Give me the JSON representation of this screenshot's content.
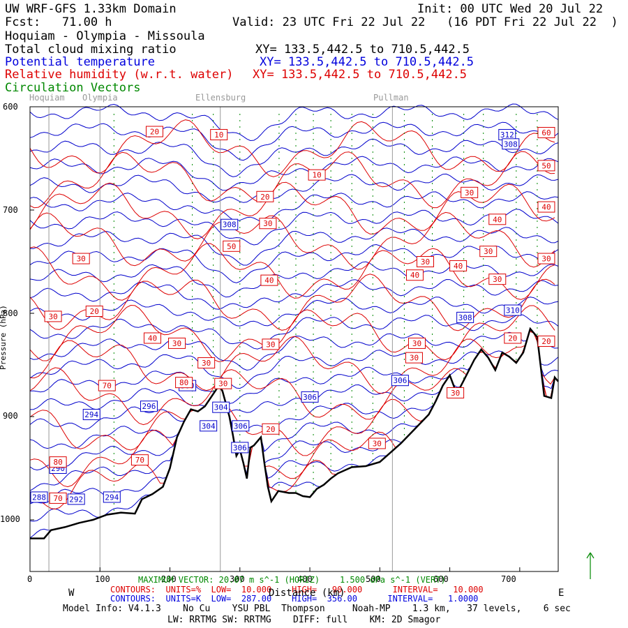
{
  "header": {
    "model": "UW WRF-GFS 1.33km Domain",
    "init": "Init: 00 UTC Wed 20 Jul 22",
    "fcst": "Fcst:   71.00 h",
    "valid": "Valid: 23 UTC Fri 22 Jul 22   (16 PDT Fri 22 Jul 22  )",
    "route": "Hoquiam - Olympia - Missoula",
    "fields": [
      {
        "label": "Total cloud mixing ratio",
        "xy": "XY= 133.5,442.5 to 710.5,442.5",
        "color": "#000000"
      },
      {
        "label": "Potential temperature",
        "xy": "XY= 133.5,442.5 to 710.5,442.5",
        "color": "#0000dd"
      },
      {
        "label": "Relative humidity (w.r.t. water)",
        "xy": "XY= 133.5,442.5 to 710.5,442.5",
        "color": "#dd0000"
      },
      {
        "label": "Circulation Vectors",
        "xy": "",
        "color": "#008800"
      }
    ]
  },
  "locations": [
    {
      "name": "Hoquiam",
      "km": 27
    },
    {
      "name": "Olympia",
      "km": 100
    },
    {
      "name": "Ellensburg",
      "km": 272
    },
    {
      "name": "Pullman",
      "km": 518
    }
  ],
  "footer": {
    "max_vector": "MAXIMUM VECTOR: 20.07 m s^-1 (HORIZ)    1.500 dPa s^-1 (VERT)",
    "rh_contours": "CONTOURS:  UNITS=%  LOW=  10.000    HIGH=   90.000      INTERVAL=   10.000",
    "theta_contours": "CONTOURS:  UNITS=K  LOW=  287.00    HIGH=  356.00      INTERVAL=   1.0000",
    "west": "W",
    "east": "E",
    "model_info": "Model Info: V4.1.3    No Cu    YSU PBL  Thompson     Noah-MP    1.3 km,   37 levels,    6 sec",
    "model_info2": "LW: RRTMG SW: RRTMG    DIFF: full    KM: 2D Smagor"
  },
  "chart_data": {
    "type": "cross-section",
    "title": "UW WRF-GFS 1.33km Domain",
    "xlabel": "Distance (km)",
    "ylabel": "Pressure (hPa)",
    "xlim": [
      0,
      755
    ],
    "ylim": [
      1050,
      600
    ],
    "xticks": [
      0,
      100,
      200,
      300,
      400,
      500,
      600,
      700
    ],
    "yticks": [
      600,
      700,
      800,
      900,
      1000
    ],
    "terrain_hpa": [
      [
        0,
        1018
      ],
      [
        20,
        1018
      ],
      [
        30,
        1010
      ],
      [
        50,
        1007
      ],
      [
        70,
        1003
      ],
      [
        90,
        1000
      ],
      [
        110,
        995
      ],
      [
        130,
        993
      ],
      [
        150,
        994
      ],
      [
        160,
        980
      ],
      [
        175,
        975
      ],
      [
        190,
        968
      ],
      [
        200,
        950
      ],
      [
        210,
        920
      ],
      [
        220,
        905
      ],
      [
        230,
        893
      ],
      [
        240,
        895
      ],
      [
        250,
        890
      ],
      [
        260,
        880
      ],
      [
        270,
        870
      ],
      [
        275,
        875
      ],
      [
        285,
        900
      ],
      [
        290,
        918
      ],
      [
        295,
        938
      ],
      [
        300,
        932
      ],
      [
        305,
        945
      ],
      [
        310,
        960
      ],
      [
        315,
        930
      ],
      [
        320,
        928
      ],
      [
        330,
        920
      ],
      [
        335,
        945
      ],
      [
        340,
        968
      ],
      [
        345,
        982
      ],
      [
        355,
        972
      ],
      [
        370,
        974
      ],
      [
        380,
        974
      ],
      [
        390,
        977
      ],
      [
        400,
        978
      ],
      [
        410,
        970
      ],
      [
        420,
        966
      ],
      [
        430,
        960
      ],
      [
        440,
        955
      ],
      [
        460,
        949
      ],
      [
        480,
        948
      ],
      [
        500,
        944
      ],
      [
        510,
        938
      ],
      [
        530,
        926
      ],
      [
        550,
        912
      ],
      [
        570,
        898
      ],
      [
        580,
        885
      ],
      [
        590,
        870
      ],
      [
        600,
        860
      ],
      [
        610,
        878
      ],
      [
        620,
        865
      ],
      [
        635,
        845
      ],
      [
        645,
        835
      ],
      [
        655,
        843
      ],
      [
        665,
        855
      ],
      [
        675,
        838
      ],
      [
        685,
        842
      ],
      [
        695,
        848
      ],
      [
        705,
        838
      ],
      [
        715,
        815
      ],
      [
        725,
        823
      ],
      [
        735,
        880
      ],
      [
        745,
        882
      ],
      [
        750,
        862
      ],
      [
        755,
        866
      ]
    ],
    "theta_labels": [
      {
        "value": 288,
        "km": 13,
        "hpa": 978
      },
      {
        "value": 290,
        "km": 40,
        "hpa": 950
      },
      {
        "value": 292,
        "km": 66,
        "hpa": 980
      },
      {
        "value": 294,
        "km": 88,
        "hpa": 898
      },
      {
        "value": 294,
        "km": 117,
        "hpa": 978
      },
      {
        "value": 296,
        "km": 170,
        "hpa": 890
      },
      {
        "value": 300,
        "km": 225,
        "hpa": 870
      },
      {
        "value": 304,
        "km": 255,
        "hpa": 909
      },
      {
        "value": 304,
        "km": 273,
        "hpa": 891
      },
      {
        "value": 306,
        "km": 301,
        "hpa": 909
      },
      {
        "value": 306,
        "km": 300,
        "hpa": 930
      },
      {
        "value": 306,
        "km": 400,
        "hpa": 881
      },
      {
        "value": 306,
        "km": 529,
        "hpa": 865
      },
      {
        "value": 308,
        "km": 622,
        "hpa": 804
      },
      {
        "value": 310,
        "km": 690,
        "hpa": 797
      },
      {
        "value": 308,
        "km": 285,
        "hpa": 714
      },
      {
        "value": 312,
        "km": 682,
        "hpa": 627
      },
      {
        "value": 308,
        "km": 687,
        "hpa": 636
      }
    ],
    "rh_labels": [
      {
        "value": 20,
        "km": 178,
        "hpa": 624
      },
      {
        "value": 10,
        "km": 270,
        "hpa": 627
      },
      {
        "value": 10,
        "km": 410,
        "hpa": 666
      },
      {
        "value": 20,
        "km": 336,
        "hpa": 687
      },
      {
        "value": 30,
        "km": 340,
        "hpa": 713
      },
      {
        "value": 50,
        "km": 288,
        "hpa": 735
      },
      {
        "value": 30,
        "km": 73,
        "hpa": 747
      },
      {
        "value": 30,
        "km": 33,
        "hpa": 803
      },
      {
        "value": 20,
        "km": 92,
        "hpa": 798
      },
      {
        "value": 40,
        "km": 342,
        "hpa": 768
      },
      {
        "value": 30,
        "km": 565,
        "hpa": 750
      },
      {
        "value": 40,
        "km": 550,
        "hpa": 763
      },
      {
        "value": 40,
        "km": 612,
        "hpa": 754
      },
      {
        "value": 30,
        "km": 655,
        "hpa": 740
      },
      {
        "value": 40,
        "km": 668,
        "hpa": 709
      },
      {
        "value": 30,
        "km": 628,
        "hpa": 683
      },
      {
        "value": 30,
        "km": 668,
        "hpa": 767
      },
      {
        "value": 20,
        "km": 690,
        "hpa": 824
      },
      {
        "value": 30,
        "km": 344,
        "hpa": 830
      },
      {
        "value": 30,
        "km": 553,
        "hpa": 829
      },
      {
        "value": 30,
        "km": 549,
        "hpa": 843
      },
      {
        "value": 30,
        "km": 252,
        "hpa": 848
      },
      {
        "value": 40,
        "km": 175,
        "hpa": 824
      },
      {
        "value": 30,
        "km": 210,
        "hpa": 829
      },
      {
        "value": 30,
        "km": 276,
        "hpa": 868
      },
      {
        "value": 70,
        "km": 110,
        "hpa": 870
      },
      {
        "value": 80,
        "km": 220,
        "hpa": 867
      },
      {
        "value": 20,
        "km": 344,
        "hpa": 912
      },
      {
        "value": 30,
        "km": 496,
        "hpa": 926
      },
      {
        "value": 70,
        "km": 157,
        "hpa": 942
      },
      {
        "value": 80,
        "km": 40,
        "hpa": 944
      },
      {
        "value": 30,
        "km": 608,
        "hpa": 877
      },
      {
        "value": 60,
        "km": 738,
        "hpa": 625
      },
      {
        "value": 50,
        "km": 738,
        "hpa": 657
      },
      {
        "value": 40,
        "km": 738,
        "hpa": 697
      },
      {
        "value": 30,
        "km": 738,
        "hpa": 747
      },
      {
        "value": 20,
        "km": 738,
        "hpa": 827
      },
      {
        "value": 70,
        "km": 40,
        "hpa": 979
      }
    ]
  }
}
